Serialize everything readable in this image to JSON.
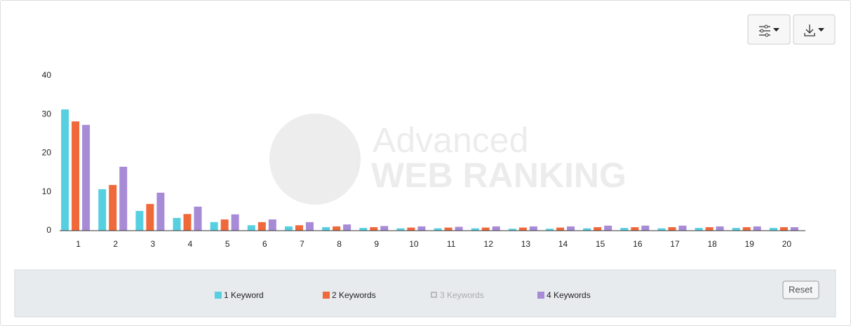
{
  "chart_data": {
    "type": "bar",
    "categories": [
      "1",
      "2",
      "3",
      "4",
      "5",
      "6",
      "7",
      "8",
      "9",
      "10",
      "11",
      "12",
      "13",
      "14",
      "15",
      "16",
      "17",
      "18",
      "19",
      "20"
    ],
    "series": [
      {
        "name": "1 Keyword",
        "color": "#56d0e0",
        "values": [
          31.3,
          10.7,
          5.1,
          3.3,
          2.2,
          1.4,
          1.1,
          0.9,
          0.7,
          0.6,
          0.6,
          0.6,
          0.5,
          0.5,
          0.6,
          0.7,
          0.6,
          0.7,
          0.7,
          0.7
        ]
      },
      {
        "name": "2 Keywords",
        "color": "#f0693a",
        "values": [
          28.2,
          11.8,
          6.9,
          4.3,
          2.9,
          2.2,
          1.4,
          1.1,
          0.9,
          0.8,
          0.8,
          0.8,
          0.8,
          0.8,
          0.9,
          0.9,
          0.9,
          0.9,
          0.9,
          0.9
        ]
      },
      {
        "name": "3 Keywords",
        "color": "#aaaaaa",
        "hidden": true
      },
      {
        "name": "4 Keywords",
        "color": "#a88bd6",
        "values": [
          27.3,
          16.5,
          9.8,
          6.2,
          4.2,
          2.9,
          2.2,
          1.6,
          1.2,
          1.1,
          1.0,
          1.1,
          1.1,
          1.1,
          1.3,
          1.3,
          1.3,
          1.1,
          1.1,
          0.9
        ]
      }
    ],
    "ylim": [
      0,
      40
    ],
    "yticks": [
      0,
      10,
      20,
      30,
      40
    ],
    "grid": false,
    "watermark": [
      "Advanced",
      "WEB RANKING"
    ],
    "reset_button": "Reset"
  }
}
